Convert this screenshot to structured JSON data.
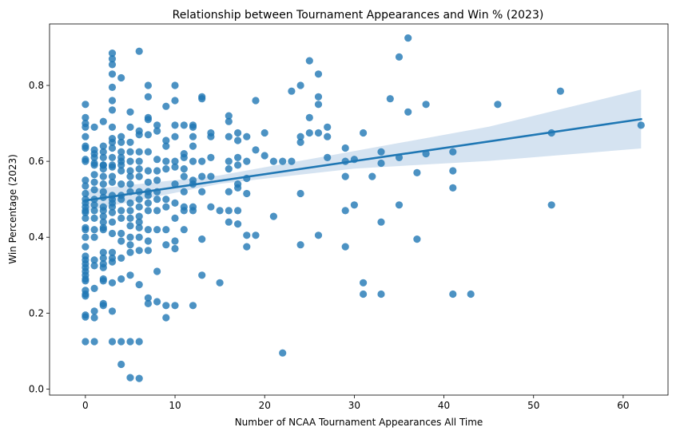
{
  "chart_data": {
    "type": "scatter",
    "title": "Relationship between Tournament Appearances and Win % (2023)",
    "xlabel": "Number of NCAA Tournament Appearances All Time",
    "ylabel": "Win Percentage (2023)",
    "xlim": [
      -4,
      65
    ],
    "ylim": [
      -0.016,
      0.962
    ],
    "xticks": [
      0,
      10,
      20,
      30,
      40,
      50,
      60
    ],
    "yticks": [
      0.0,
      0.2,
      0.4,
      0.6,
      0.8
    ],
    "grid": false,
    "legend": "none",
    "colors": {
      "points": "#1f77b4",
      "line": "#1f77b4",
      "band": "#c7d9ec"
    },
    "series": [
      {
        "kind": "points",
        "x": [
          0,
          0,
          0,
          0,
          0,
          0,
          0,
          0,
          0,
          0,
          0,
          0,
          0,
          0,
          0,
          0,
          0,
          0,
          0,
          0,
          0,
          0,
          0,
          0,
          0,
          0,
          0,
          0,
          0,
          0,
          0,
          0,
          0,
          0,
          0,
          0,
          1,
          1,
          1,
          1,
          1,
          1,
          1,
          1,
          1,
          1,
          1,
          1,
          1,
          1,
          1,
          1,
          1,
          1,
          1,
          1,
          1,
          2,
          2,
          2,
          2,
          2,
          2,
          2,
          2,
          2,
          2,
          2,
          2,
          2,
          2,
          2,
          2,
          2,
          2,
          2,
          2,
          2,
          2,
          2,
          2,
          2,
          3,
          3,
          3,
          3,
          3,
          3,
          3,
          3,
          3,
          3,
          3,
          3,
          3,
          3,
          3,
          3,
          3,
          3,
          3,
          3,
          3,
          3,
          3,
          3,
          3,
          3,
          3,
          3,
          3,
          4,
          4,
          4,
          4,
          4,
          4,
          4,
          4,
          4,
          4,
          4,
          4,
          4,
          4,
          4,
          4,
          4,
          4,
          4,
          5,
          5,
          5,
          5,
          5,
          5,
          5,
          5,
          5,
          5,
          5,
          5,
          5,
          5,
          5,
          5,
          5,
          5,
          5,
          6,
          6,
          6,
          6,
          6,
          6,
          6,
          6,
          6,
          6,
          6,
          6,
          6,
          6,
          6,
          6,
          6,
          6,
          7,
          7,
          7,
          7,
          7,
          7,
          7,
          7,
          7,
          7,
          7,
          7,
          7,
          7,
          7,
          7,
          7,
          8,
          8,
          8,
          8,
          8,
          8,
          8,
          8,
          8,
          8,
          8,
          9,
          9,
          9,
          9,
          9,
          9,
          9,
          9,
          9,
          9,
          9,
          10,
          10,
          10,
          10,
          10,
          10,
          10,
          10,
          10,
          10,
          10,
          10,
          11,
          11,
          11,
          11,
          11,
          11,
          11,
          11,
          11,
          12,
          12,
          12,
          12,
          12,
          12,
          12,
          12,
          12,
          12,
          13,
          13,
          13,
          13,
          13,
          13,
          13,
          14,
          14,
          14,
          14,
          14,
          15,
          15,
          16,
          16,
          16,
          16,
          16,
          16,
          16,
          16,
          17,
          17,
          17,
          17,
          17,
          17,
          17,
          17,
          18,
          18,
          18,
          18,
          18,
          18,
          19,
          19,
          19,
          20,
          20,
          21,
          21,
          22,
          22,
          23,
          23,
          24,
          24,
          24,
          24,
          24,
          25,
          25,
          25,
          26,
          26,
          26,
          26,
          26,
          27,
          27,
          27,
          29,
          29,
          29,
          29,
          29,
          30,
          30,
          31,
          31,
          31,
          32,
          33,
          33,
          33,
          33,
          34,
          35,
          35,
          35,
          36,
          36,
          37,
          37,
          38,
          38,
          41,
          41,
          41,
          41,
          43,
          46,
          52,
          52,
          53,
          62
        ],
        "y": [
          0.75,
          0.715,
          0.7,
          0.69,
          0.665,
          0.64,
          0.635,
          0.605,
          0.6,
          0.55,
          0.535,
          0.515,
          0.5,
          0.49,
          0.48,
          0.47,
          0.465,
          0.45,
          0.425,
          0.42,
          0.4,
          0.375,
          0.35,
          0.34,
          0.33,
          0.32,
          0.31,
          0.3,
          0.29,
          0.285,
          0.26,
          0.25,
          0.245,
          0.195,
          0.19,
          0.125,
          0.69,
          0.63,
          0.62,
          0.595,
          0.565,
          0.545,
          0.525,
          0.5,
          0.485,
          0.47,
          0.45,
          0.42,
          0.4,
          0.34,
          0.325,
          0.265,
          0.205,
          0.188,
          0.125,
          0.59,
          0.61,
          0.705,
          0.64,
          0.625,
          0.61,
          0.59,
          0.58,
          0.56,
          0.54,
          0.52,
          0.505,
          0.48,
          0.47,
          0.455,
          0.44,
          0.425,
          0.42,
          0.36,
          0.345,
          0.33,
          0.32,
          0.29,
          0.285,
          0.225,
          0.22,
          0.59,
          0.885,
          0.87,
          0.855,
          0.83,
          0.795,
          0.76,
          0.735,
          0.69,
          0.66,
          0.65,
          0.635,
          0.61,
          0.585,
          0.56,
          0.545,
          0.51,
          0.5,
          0.49,
          0.48,
          0.465,
          0.44,
          0.41,
          0.36,
          0.345,
          0.335,
          0.28,
          0.205,
          0.125,
          0.59,
          0.82,
          0.665,
          0.65,
          0.625,
          0.6,
          0.59,
          0.575,
          0.54,
          0.51,
          0.5,
          0.47,
          0.45,
          0.41,
          0.39,
          0.345,
          0.29,
          0.125,
          0.065,
          0.61,
          0.73,
          0.69,
          0.65,
          0.625,
          0.6,
          0.575,
          0.56,
          0.54,
          0.52,
          0.49,
          0.47,
          0.45,
          0.43,
          0.4,
          0.38,
          0.36,
          0.3,
          0.125,
          0.03,
          0.89,
          0.68,
          0.67,
          0.625,
          0.6,
          0.58,
          0.56,
          0.52,
          0.5,
          0.48,
          0.455,
          0.44,
          0.425,
          0.4,
          0.365,
          0.275,
          0.125,
          0.028,
          0.8,
          0.77,
          0.715,
          0.71,
          0.67,
          0.625,
          0.575,
          0.545,
          0.52,
          0.51,
          0.49,
          0.47,
          0.42,
          0.39,
          0.365,
          0.24,
          0.225,
          0.695,
          0.68,
          0.605,
          0.575,
          0.55,
          0.52,
          0.5,
          0.47,
          0.42,
          0.31,
          0.23,
          0.745,
          0.655,
          0.64,
          0.6,
          0.58,
          0.5,
          0.48,
          0.42,
          0.38,
          0.22,
          0.188,
          0.8,
          0.76,
          0.695,
          0.665,
          0.6,
          0.585,
          0.54,
          0.49,
          0.45,
          0.39,
          0.37,
          0.22,
          0.695,
          0.61,
          0.58,
          0.56,
          0.52,
          0.48,
          0.47,
          0.42,
          0.62,
          0.695,
          0.665,
          0.64,
          0.6,
          0.55,
          0.54,
          0.48,
          0.47,
          0.22,
          0.69,
          0.77,
          0.765,
          0.6,
          0.56,
          0.52,
          0.395,
          0.3,
          0.675,
          0.665,
          0.61,
          0.56,
          0.48,
          0.47,
          0.28,
          0.72,
          0.705,
          0.665,
          0.6,
          0.58,
          0.52,
          0.47,
          0.44,
          0.675,
          0.655,
          0.61,
          0.59,
          0.54,
          0.53,
          0.47,
          0.435,
          0.665,
          0.555,
          0.515,
          0.405,
          0.375,
          0.6,
          0.76,
          0.63,
          0.405,
          0.675,
          0.615,
          0.6,
          0.455,
          0.6,
          0.095,
          0.785,
          0.6,
          0.8,
          0.665,
          0.65,
          0.515,
          0.38,
          0.865,
          0.715,
          0.675,
          0.83,
          0.77,
          0.75,
          0.675,
          0.405,
          0.69,
          0.665,
          0.61,
          0.635,
          0.6,
          0.56,
          0.47,
          0.375,
          0.605,
          0.485,
          0.675,
          0.28,
          0.25,
          0.56,
          0.625,
          0.595,
          0.44,
          0.25,
          0.765,
          0.875,
          0.61,
          0.485,
          0.925,
          0.73,
          0.57,
          0.395,
          0.75,
          0.62,
          0.625,
          0.575,
          0.53,
          0.25,
          0.25,
          0.75,
          0.675,
          0.485,
          0.785,
          0.695
        ]
      },
      {
        "kind": "regression",
        "x": [
          0,
          62
        ],
        "y": [
          0.497,
          0.711
        ],
        "ci_x": [
          0,
          15,
          30,
          45,
          62
        ],
        "ci_lower": [
          0.469,
          0.541,
          0.581,
          0.601,
          0.634
        ],
        "ci_upper": [
          0.525,
          0.563,
          0.627,
          0.691,
          0.789
        ]
      }
    ]
  }
}
